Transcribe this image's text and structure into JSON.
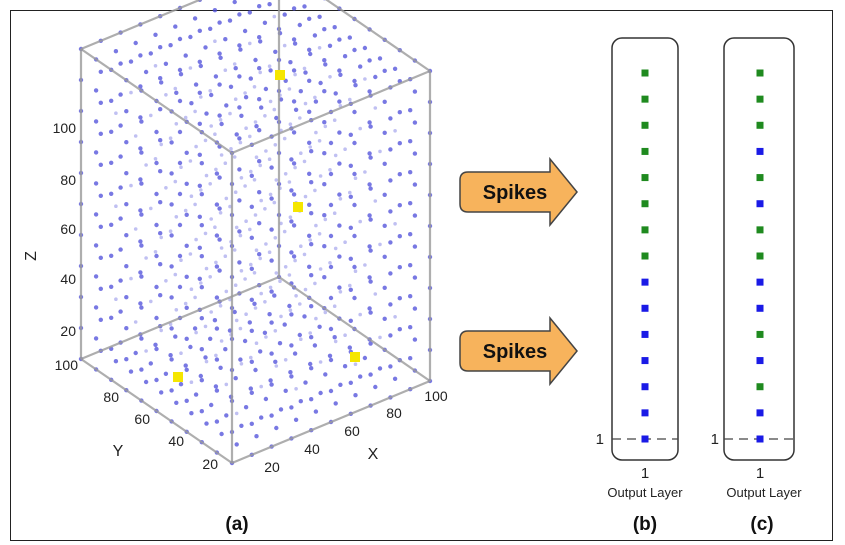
{
  "panel_a": {
    "caption": "(a)",
    "z_axis": {
      "name": "Z",
      "ticks": [
        "100",
        "80",
        "60",
        "40",
        "20"
      ]
    },
    "y_axis": {
      "name": "Y",
      "ticks": [
        "100",
        "80",
        "60",
        "40",
        "20"
      ]
    },
    "x_axis": {
      "name": "X",
      "ticks": [
        "20",
        "40",
        "60",
        "80",
        "100"
      ]
    },
    "neuron_color": "#4b4bd9",
    "highlight_color": "#f5e600"
  },
  "arrows": [
    {
      "label": "Spikes"
    },
    {
      "label": "Spikes"
    }
  ],
  "arrow_fill": "#f7b35c",
  "output_columns": [
    {
      "caption": "(b)",
      "layer_label": "Output Layer",
      "x_tick": "1",
      "y_tick": "1",
      "dots": [
        "green",
        "green",
        "green",
        "green",
        "green",
        "green",
        "green",
        "green",
        "blue",
        "blue",
        "blue",
        "blue",
        "blue",
        "blue",
        "blue"
      ]
    },
    {
      "caption": "(c)",
      "layer_label": "Output Layer",
      "x_tick": "1",
      "y_tick": "1",
      "dots": [
        "green",
        "green",
        "green",
        "blue",
        "green",
        "blue",
        "green",
        "green",
        "blue",
        "blue",
        "green",
        "blue",
        "green",
        "blue",
        "blue"
      ]
    }
  ],
  "colors": {
    "green": "#1f8a1f",
    "blue": "#1a1ae6"
  }
}
